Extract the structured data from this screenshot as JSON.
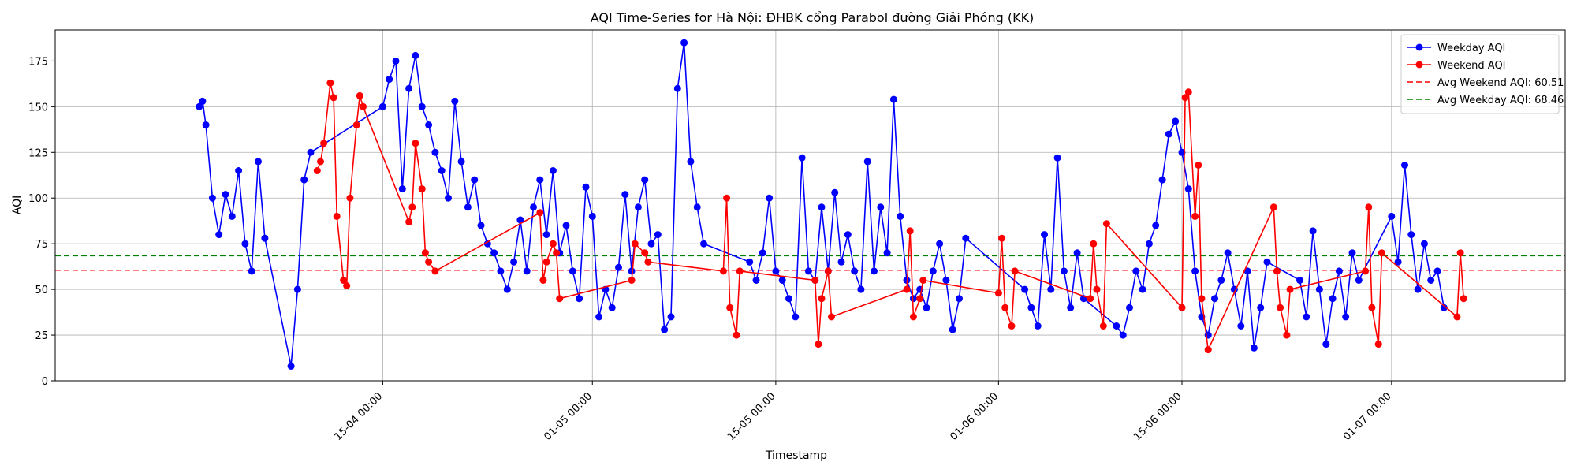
{
  "chart_data": {
    "type": "line",
    "title": "AQI Time-Series for Hà Nội: ĐHBK cổng Parabol đường Giải Phóng (KK)",
    "xlabel": "Timestamp",
    "ylabel": "AQI",
    "x_type": "datetime",
    "xlim": [
      "2024-03-21 00:00",
      "2024-07-14 06:00"
    ],
    "ylim": [
      0,
      192
    ],
    "x_ticks": [
      "2024-04-15 00:00",
      "2024-05-01 00:00",
      "2024-05-15 00:00",
      "2024-06-01 00:00",
      "2024-06-15 00:00",
      "2024-07-01 00:00"
    ],
    "x_tick_labels": [
      "15-04 00:00",
      "01-05 00:00",
      "15-05 00:00",
      "01-06 00:00",
      "15-06 00:00",
      "01-07 00:00"
    ],
    "y_ticks": [
      0,
      25,
      50,
      75,
      100,
      125,
      150,
      175
    ],
    "y_tick_labels": [
      "0",
      "25",
      "50",
      "75",
      "100",
      "125",
      "150",
      "175"
    ],
    "grid": true,
    "legend_position": "top-right",
    "series": [
      {
        "name": "Weekday AQI",
        "color": "#0000ff",
        "marker": "circle",
        "points": [
          [
            "2024-04-01 00:00",
            150
          ],
          [
            "2024-04-01 06:00",
            153
          ],
          [
            "2024-04-01 12:00",
            140
          ],
          [
            "2024-04-02 00:00",
            100
          ],
          [
            "2024-04-02 12:00",
            80
          ],
          [
            "2024-04-03 00:00",
            102
          ],
          [
            "2024-04-03 12:00",
            90
          ],
          [
            "2024-04-04 00:00",
            115
          ],
          [
            "2024-04-04 12:00",
            75
          ],
          [
            "2024-04-05 00:00",
            60
          ],
          [
            "2024-04-05 12:00",
            120
          ],
          [
            "2024-04-06 00:00",
            78
          ],
          [
            "2024-04-08 00:00",
            8
          ],
          [
            "2024-04-08 12:00",
            50
          ],
          [
            "2024-04-09 00:00",
            110
          ],
          [
            "2024-04-09 12:00",
            125
          ],
          [
            "2024-04-15 00:00",
            150
          ],
          [
            "2024-04-15 12:00",
            165
          ],
          [
            "2024-04-16 00:00",
            175
          ],
          [
            "2024-04-16 12:00",
            105
          ],
          [
            "2024-04-17 00:00",
            160
          ],
          [
            "2024-04-17 12:00",
            178
          ],
          [
            "2024-04-18 00:00",
            150
          ],
          [
            "2024-04-18 12:00",
            140
          ],
          [
            "2024-04-19 00:00",
            125
          ],
          [
            "2024-04-19 12:00",
            115
          ],
          [
            "2024-04-20 00:00",
            100
          ],
          [
            "2024-04-20 12:00",
            153
          ],
          [
            "2024-04-21 00:00",
            120
          ],
          [
            "2024-04-21 12:00",
            95
          ],
          [
            "2024-04-22 00:00",
            110
          ],
          [
            "2024-04-22 12:00",
            85
          ],
          [
            "2024-04-23 00:00",
            75
          ],
          [
            "2024-04-23 12:00",
            70
          ],
          [
            "2024-04-24 00:00",
            60
          ],
          [
            "2024-04-24 12:00",
            50
          ],
          [
            "2024-04-25 00:00",
            65
          ],
          [
            "2024-04-25 12:00",
            88
          ],
          [
            "2024-04-26 00:00",
            60
          ],
          [
            "2024-04-26 12:00",
            95
          ],
          [
            "2024-04-27 00:00",
            110
          ],
          [
            "2024-04-27 12:00",
            80
          ],
          [
            "2024-04-28 00:00",
            115
          ],
          [
            "2024-04-28 12:00",
            70
          ],
          [
            "2024-04-29 00:00",
            85
          ],
          [
            "2024-04-29 12:00",
            60
          ],
          [
            "2024-04-30 00:00",
            45
          ],
          [
            "2024-04-30 12:00",
            106
          ],
          [
            "2024-05-01 00:00",
            90
          ],
          [
            "2024-05-01 12:00",
            35
          ],
          [
            "2024-05-02 00:00",
            50
          ],
          [
            "2024-05-02 12:00",
            40
          ],
          [
            "2024-05-03 00:00",
            62
          ],
          [
            "2024-05-03 12:00",
            102
          ],
          [
            "2024-05-04 00:00",
            60
          ],
          [
            "2024-05-04 12:00",
            95
          ],
          [
            "2024-05-05 00:00",
            110
          ],
          [
            "2024-05-05 12:00",
            75
          ],
          [
            "2024-05-06 00:00",
            80
          ],
          [
            "2024-05-06 12:00",
            28
          ],
          [
            "2024-05-07 00:00",
            35
          ],
          [
            "2024-05-07 12:00",
            160
          ],
          [
            "2024-05-08 00:00",
            185
          ],
          [
            "2024-05-08 12:00",
            120
          ],
          [
            "2024-05-09 00:00",
            95
          ],
          [
            "2024-05-09 12:00",
            75
          ],
          [
            "2024-05-13 00:00",
            65
          ],
          [
            "2024-05-13 12:00",
            55
          ],
          [
            "2024-05-14 00:00",
            70
          ],
          [
            "2024-05-14 12:00",
            100
          ],
          [
            "2024-05-15 00:00",
            60
          ],
          [
            "2024-05-15 12:00",
            55
          ],
          [
            "2024-05-16 00:00",
            45
          ],
          [
            "2024-05-16 12:00",
            35
          ],
          [
            "2024-05-17 00:00",
            122
          ],
          [
            "2024-05-17 12:00",
            60
          ],
          [
            "2024-05-18 00:00",
            55
          ],
          [
            "2024-05-18 12:00",
            95
          ],
          [
            "2024-05-19 00:00",
            60
          ],
          [
            "2024-05-19 12:00",
            103
          ],
          [
            "2024-05-20 00:00",
            65
          ],
          [
            "2024-05-20 12:00",
            80
          ],
          [
            "2024-05-21 00:00",
            60
          ],
          [
            "2024-05-21 12:00",
            50
          ],
          [
            "2024-05-22 00:00",
            120
          ],
          [
            "2024-05-22 12:00",
            60
          ],
          [
            "2024-05-23 00:00",
            95
          ],
          [
            "2024-05-23 12:00",
            70
          ],
          [
            "2024-05-24 00:00",
            154
          ],
          [
            "2024-05-24 12:00",
            90
          ],
          [
            "2024-05-25 00:00",
            55
          ],
          [
            "2024-05-25 12:00",
            45
          ],
          [
            "2024-05-26 00:00",
            50
          ],
          [
            "2024-05-26 12:00",
            40
          ],
          [
            "2024-05-27 00:00",
            60
          ],
          [
            "2024-05-27 12:00",
            75
          ],
          [
            "2024-05-28 00:00",
            55
          ],
          [
            "2024-05-28 12:00",
            28
          ],
          [
            "2024-05-29 00:00",
            45
          ],
          [
            "2024-05-29 12:00",
            78
          ],
          [
            "2024-06-03 00:00",
            50
          ],
          [
            "2024-06-03 12:00",
            40
          ],
          [
            "2024-06-04 00:00",
            30
          ],
          [
            "2024-06-04 12:00",
            80
          ],
          [
            "2024-06-05 00:00",
            50
          ],
          [
            "2024-06-05 12:00",
            122
          ],
          [
            "2024-06-06 00:00",
            60
          ],
          [
            "2024-06-06 12:00",
            40
          ],
          [
            "2024-06-07 00:00",
            70
          ],
          [
            "2024-06-07 12:00",
            45
          ],
          [
            "2024-06-10 00:00",
            30
          ],
          [
            "2024-06-10 12:00",
            25
          ],
          [
            "2024-06-11 00:00",
            40
          ],
          [
            "2024-06-11 12:00",
            60
          ],
          [
            "2024-06-12 00:00",
            50
          ],
          [
            "2024-06-12 12:00",
            75
          ],
          [
            "2024-06-13 00:00",
            85
          ],
          [
            "2024-06-13 12:00",
            110
          ],
          [
            "2024-06-14 00:00",
            135
          ],
          [
            "2024-06-14 12:00",
            142
          ],
          [
            "2024-06-15 00:00",
            125
          ],
          [
            "2024-06-15 12:00",
            105
          ],
          [
            "2024-06-16 00:00",
            60
          ],
          [
            "2024-06-16 12:00",
            35
          ],
          [
            "2024-06-17 00:00",
            25
          ],
          [
            "2024-06-17 12:00",
            45
          ],
          [
            "2024-06-18 00:00",
            55
          ],
          [
            "2024-06-18 12:00",
            70
          ],
          [
            "2024-06-19 00:00",
            50
          ],
          [
            "2024-06-19 12:00",
            30
          ],
          [
            "2024-06-20 00:00",
            60
          ],
          [
            "2024-06-20 12:00",
            18
          ],
          [
            "2024-06-21 00:00",
            40
          ],
          [
            "2024-06-21 12:00",
            65
          ],
          [
            "2024-06-24 00:00",
            55
          ],
          [
            "2024-06-24 12:00",
            35
          ],
          [
            "2024-06-25 00:00",
            82
          ],
          [
            "2024-06-25 12:00",
            50
          ],
          [
            "2024-06-26 00:00",
            20
          ],
          [
            "2024-06-26 12:00",
            45
          ],
          [
            "2024-06-27 00:00",
            60
          ],
          [
            "2024-06-27 12:00",
            35
          ],
          [
            "2024-06-28 00:00",
            70
          ],
          [
            "2024-06-28 12:00",
            55
          ],
          [
            "2024-07-01 00:00",
            90
          ],
          [
            "2024-07-01 12:00",
            65
          ],
          [
            "2024-07-02 00:00",
            118
          ],
          [
            "2024-07-02 12:00",
            80
          ],
          [
            "2024-07-03 00:00",
            50
          ],
          [
            "2024-07-03 12:00",
            75
          ],
          [
            "2024-07-04 00:00",
            55
          ],
          [
            "2024-07-04 12:00",
            60
          ],
          [
            "2024-07-05 00:00",
            40
          ]
        ]
      },
      {
        "name": "Weekend AQI",
        "color": "#ff0000",
        "marker": "circle",
        "points": [
          [
            "2024-04-10 00:00",
            115
          ],
          [
            "2024-04-10 06:00",
            120
          ],
          [
            "2024-04-10 12:00",
            130
          ],
          [
            "2024-04-11 00:00",
            163
          ],
          [
            "2024-04-11 06:00",
            155
          ],
          [
            "2024-04-11 12:00",
            90
          ],
          [
            "2024-04-12 00:00",
            55
          ],
          [
            "2024-04-12 06:00",
            52
          ],
          [
            "2024-04-12 12:00",
            100
          ],
          [
            "2024-04-13 00:00",
            140
          ],
          [
            "2024-04-13 06:00",
            156
          ],
          [
            "2024-04-13 12:00",
            150
          ],
          [
            "2024-04-17 00:00",
            87
          ],
          [
            "2024-04-17 06:00",
            95
          ],
          [
            "2024-04-17 12:00",
            130
          ],
          [
            "2024-04-18 00:00",
            105
          ],
          [
            "2024-04-18 06:00",
            70
          ],
          [
            "2024-04-18 12:00",
            65
          ],
          [
            "2024-04-19 00:00",
            60
          ],
          [
            "2024-04-27 00:00",
            92
          ],
          [
            "2024-04-27 06:00",
            55
          ],
          [
            "2024-04-27 12:00",
            65
          ],
          [
            "2024-04-28 00:00",
            75
          ],
          [
            "2024-04-28 06:00",
            70
          ],
          [
            "2024-04-28 12:00",
            45
          ],
          [
            "2024-05-04 00:00",
            55
          ],
          [
            "2024-05-04 06:00",
            75
          ],
          [
            "2024-05-05 00:00",
            70
          ],
          [
            "2024-05-05 06:00",
            65
          ],
          [
            "2024-05-11 00:00",
            60
          ],
          [
            "2024-05-11 06:00",
            100
          ],
          [
            "2024-05-11 12:00",
            40
          ],
          [
            "2024-05-12 00:00",
            25
          ],
          [
            "2024-05-12 06:00",
            60
          ],
          [
            "2024-05-18 00:00",
            55
          ],
          [
            "2024-05-18 06:00",
            20
          ],
          [
            "2024-05-18 12:00",
            45
          ],
          [
            "2024-05-19 00:00",
            60
          ],
          [
            "2024-05-19 06:00",
            35
          ],
          [
            "2024-05-25 00:00",
            50
          ],
          [
            "2024-05-25 06:00",
            82
          ],
          [
            "2024-05-25 12:00",
            35
          ],
          [
            "2024-05-26 00:00",
            45
          ],
          [
            "2024-05-26 06:00",
            55
          ],
          [
            "2024-06-01 00:00",
            48
          ],
          [
            "2024-06-01 06:00",
            78
          ],
          [
            "2024-06-01 12:00",
            40
          ],
          [
            "2024-06-02 00:00",
            30
          ],
          [
            "2024-06-02 06:00",
            60
          ],
          [
            "2024-06-08 00:00",
            45
          ],
          [
            "2024-06-08 06:00",
            75
          ],
          [
            "2024-06-08 12:00",
            50
          ],
          [
            "2024-06-09 00:00",
            30
          ],
          [
            "2024-06-09 06:00",
            86
          ],
          [
            "2024-06-15 00:00",
            40
          ],
          [
            "2024-06-15 06:00",
            155
          ],
          [
            "2024-06-15 12:00",
            158
          ],
          [
            "2024-06-16 00:00",
            90
          ],
          [
            "2024-06-16 06:00",
            118
          ],
          [
            "2024-06-16 12:00",
            45
          ],
          [
            "2024-06-17 00:00",
            17
          ],
          [
            "2024-06-22 00:00",
            95
          ],
          [
            "2024-06-22 06:00",
            60
          ],
          [
            "2024-06-22 12:00",
            40
          ],
          [
            "2024-06-23 00:00",
            25
          ],
          [
            "2024-06-23 06:00",
            50
          ],
          [
            "2024-06-29 00:00",
            60
          ],
          [
            "2024-06-29 06:00",
            95
          ],
          [
            "2024-06-29 12:00",
            40
          ],
          [
            "2024-06-30 00:00",
            20
          ],
          [
            "2024-06-30 06:00",
            70
          ],
          [
            "2024-07-06 00:00",
            35
          ],
          [
            "2024-07-06 06:00",
            70
          ],
          [
            "2024-07-06 12:00",
            45
          ]
        ]
      }
    ],
    "reference_lines": [
      {
        "name": "Avg Weekend AQI: 60.51",
        "value": 60.51,
        "color": "#ff0000",
        "style": "dashed"
      },
      {
        "name": "Avg Weekday AQI: 68.46",
        "value": 68.46,
        "color": "#008000",
        "style": "dashed"
      }
    ]
  }
}
